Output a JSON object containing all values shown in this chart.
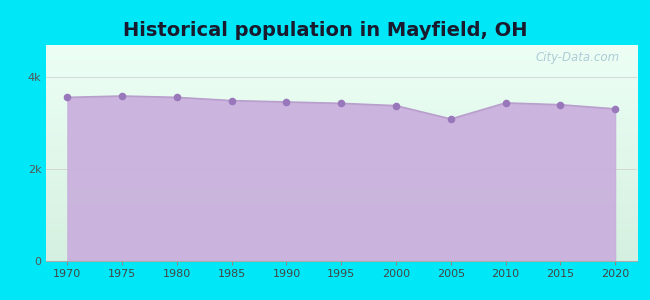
{
  "title": "Historical population in Mayfield, OH",
  "title_fontsize": 14,
  "title_fontweight": "bold",
  "years": [
    1970,
    1975,
    1980,
    1985,
    1990,
    1995,
    2000,
    2005,
    2010,
    2015,
    2020
  ],
  "population": [
    3560,
    3590,
    3560,
    3490,
    3460,
    3430,
    3380,
    3090,
    3440,
    3400,
    3310
  ],
  "yticks": [
    0,
    2000,
    4000
  ],
  "ytick_labels": [
    "0",
    "2k",
    "4k"
  ],
  "ylim": [
    0,
    4700
  ],
  "xlim": [
    1968,
    2022
  ],
  "xticks": [
    1970,
    1975,
    1980,
    1985,
    1990,
    1995,
    2000,
    2005,
    2010,
    2015,
    2020
  ],
  "line_color": "#b89fcc",
  "fill_color": "#c9aedd",
  "fill_alpha": 0.9,
  "marker_color": "#9977bb",
  "marker_size": 20,
  "bg_outer": "#00e8f8",
  "bg_grad_top": "#edfff5",
  "bg_grad_bottom": "#d5f0e0",
  "watermark": "City-Data.com"
}
